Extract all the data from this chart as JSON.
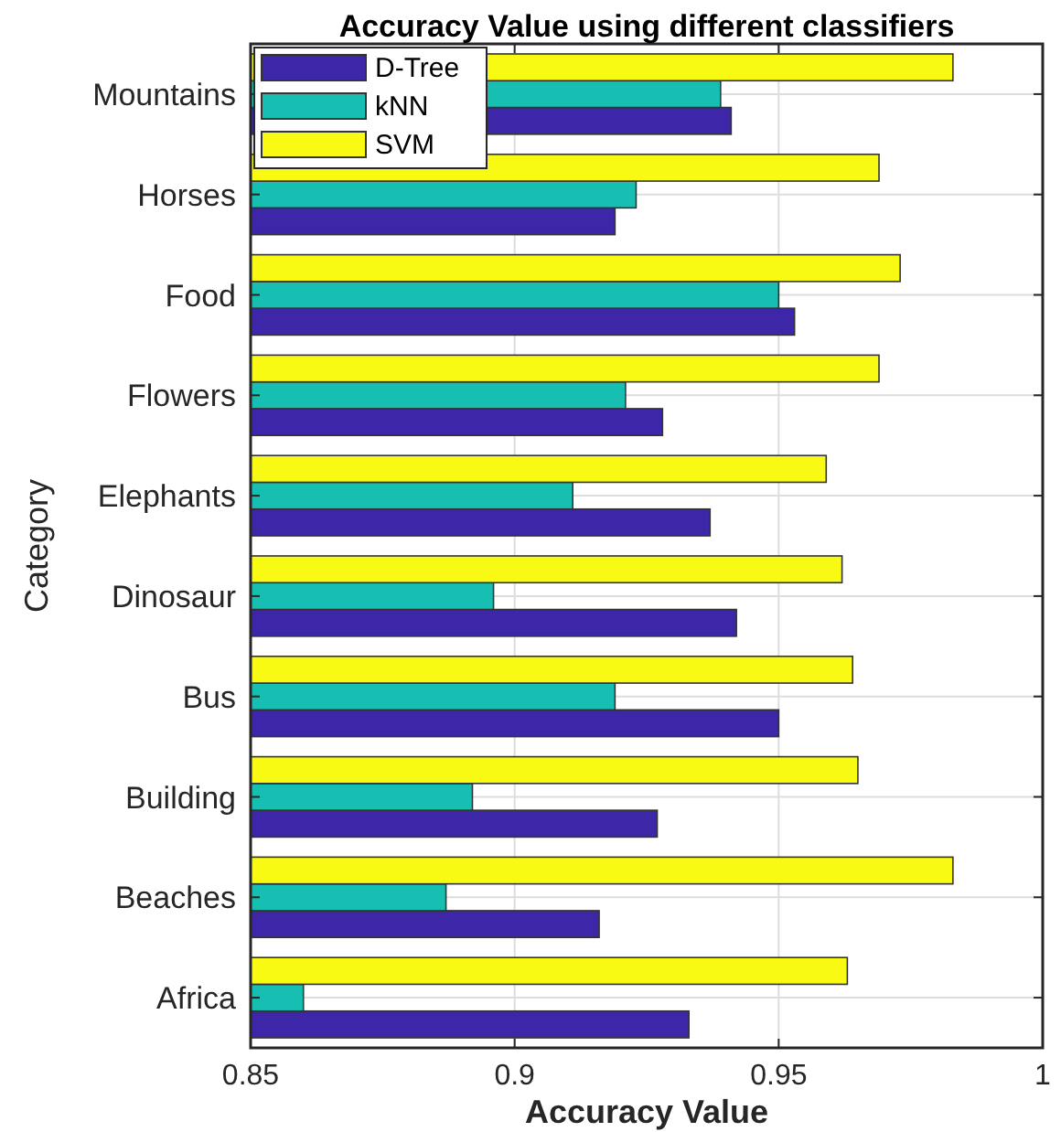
{
  "chart_data": {
    "type": "bar",
    "orientation": "horizontal",
    "title": "Accuracy Value using different classifiers",
    "xlabel": "Accuracy Value",
    "ylabel": "Category",
    "categories": [
      "Mountains",
      "Horses",
      "Food",
      "Flowers",
      "Elephants",
      "Dinosaur",
      "Bus",
      "Building",
      "Beaches",
      "Africa"
    ],
    "series": [
      {
        "name": "D-Tree",
        "color": "#3e26a8",
        "values": [
          0.941,
          0.919,
          0.953,
          0.928,
          0.937,
          0.942,
          0.95,
          0.927,
          0.916,
          0.933
        ]
      },
      {
        "name": "kNN",
        "color": "#17bfb2",
        "values": [
          0.939,
          0.923,
          0.95,
          0.921,
          0.911,
          0.896,
          0.919,
          0.892,
          0.887,
          0.86
        ]
      },
      {
        "name": "SVM",
        "color": "#f9fa14",
        "values": [
          0.983,
          0.969,
          0.973,
          0.969,
          0.959,
          0.962,
          0.964,
          0.965,
          0.983,
          0.963
        ]
      }
    ],
    "xlim": [
      0.85,
      1
    ],
    "xticks": [
      0.85,
      0.9,
      0.95,
      1
    ],
    "grid": true,
    "legend": "top left"
  }
}
